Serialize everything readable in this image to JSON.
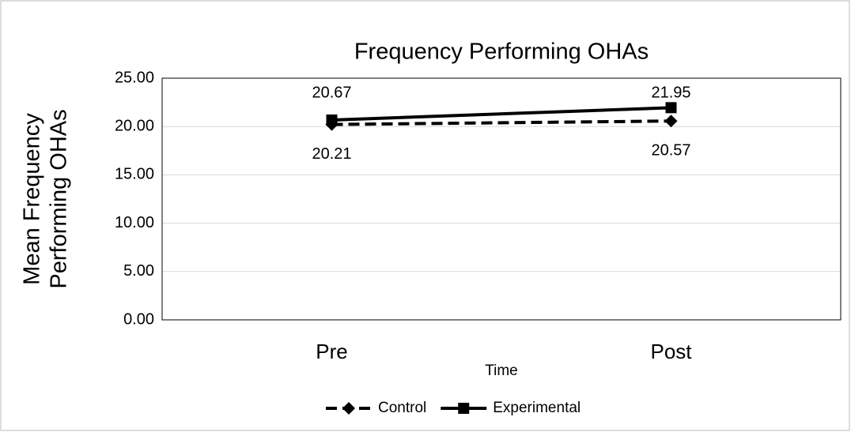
{
  "chart_data": {
    "type": "line",
    "title": "Frequency Performing OHAs",
    "x_label": "Time",
    "y_label": [
      "Mean Frequency",
      "Performing OHAs"
    ],
    "categories": [
      "Pre",
      "Post"
    ],
    "series": [
      {
        "name": "Control",
        "color": "#000000",
        "dash": true,
        "marker": "diamond",
        "values": [
          20.21,
          20.57
        ]
      },
      {
        "name": "Experimental",
        "color": "#000000",
        "dash": false,
        "marker": "square",
        "values": [
          20.67,
          21.95
        ]
      }
    ],
    "ylim": [
      0,
      25
    ],
    "yticks": [
      {
        "value": 0,
        "label": "0.00"
      },
      {
        "value": 5,
        "label": "5.00"
      },
      {
        "value": 10,
        "label": "10.00"
      },
      {
        "value": 15,
        "label": "15.00"
      },
      {
        "value": 20,
        "label": "20.00"
      },
      {
        "value": 25,
        "label": "25.00"
      }
    ],
    "grid": true,
    "legend": "bottom"
  }
}
